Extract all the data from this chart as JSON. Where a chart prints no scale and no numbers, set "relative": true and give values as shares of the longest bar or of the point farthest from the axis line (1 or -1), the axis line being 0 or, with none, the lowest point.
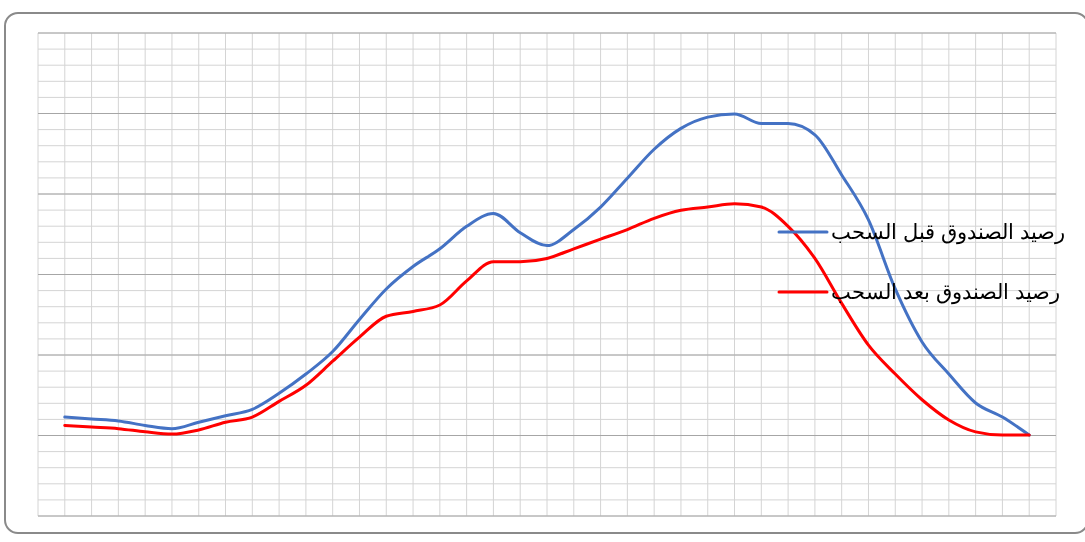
{
  "chart_data": {
    "type": "line",
    "relative": true,
    "grid": true,
    "legend": "right",
    "tick_labels": false,
    "categories": [
      null,
      null,
      null,
      null,
      null,
      null,
      null,
      null,
      null,
      null,
      null,
      null,
      null,
      null,
      null,
      null,
      null,
      null,
      null,
      null,
      null,
      null,
      null,
      null,
      null,
      null,
      null,
      null,
      null,
      null,
      null,
      null,
      null,
      null,
      null,
      null,
      null
    ],
    "series": [
      {
        "name": "رصيد الصندوق قبل السحب",
        "color": "#4472c4",
        "values": [
          0.056,
          0.05,
          0.044,
          0.03,
          0.02,
          0.04,
          0.06,
          0.08,
          0.13,
          0.19,
          0.26,
          0.36,
          0.455,
          0.525,
          0.58,
          0.65,
          0.69,
          0.63,
          0.59,
          0.64,
          0.71,
          0.8,
          0.89,
          0.955,
          0.99,
          1.0,
          0.97,
          0.97,
          0.935,
          0.81,
          0.67,
          0.455,
          0.29,
          0.19,
          0.1,
          0.056,
          0
        ]
      },
      {
        "name": "رصيد الصندوق بعد السحب",
        "color": "#ff0000",
        "values": [
          0.03,
          0.025,
          0.02,
          0.01,
          0.003,
          0.016,
          0.04,
          0.056,
          0.105,
          0.155,
          0.23,
          0.305,
          0.37,
          0.385,
          0.405,
          0.48,
          0.54,
          0.54,
          0.55,
          0.58,
          0.61,
          0.64,
          0.675,
          0.7,
          0.71,
          0.72,
          0.71,
          0.65,
          0.55,
          0.41,
          0.28,
          0.19,
          0.11,
          0.047,
          0.01,
          0,
          0
        ]
      }
    ]
  }
}
